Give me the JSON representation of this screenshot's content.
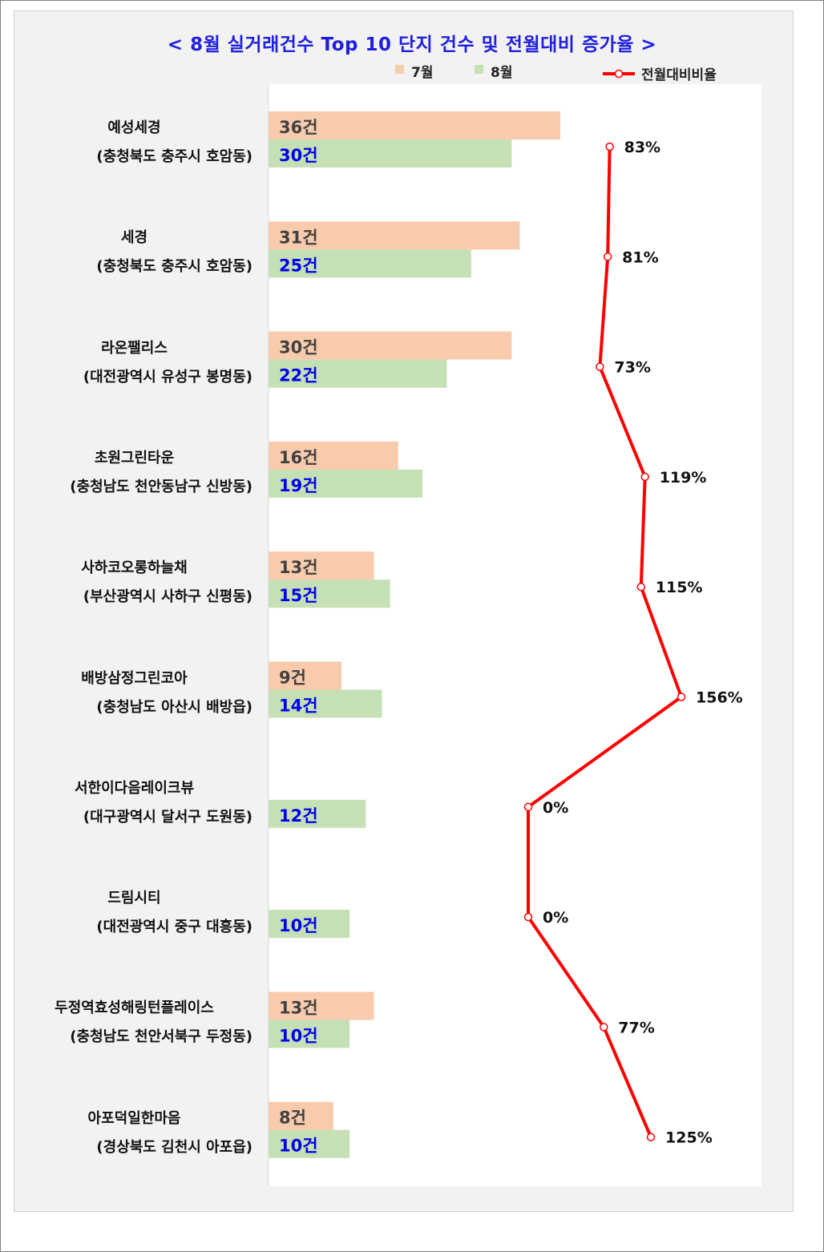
{
  "title": "< 8월 실거래건수 Top 10 단지 건수 및 전월대비 증가율 >",
  "legend": {
    "jul_label": "7월",
    "aug_label": "8월",
    "ratio_label": "전월대비비율"
  },
  "colors": {
    "jul": "#f8cbad",
    "aug": "#c5e0b4",
    "line": "#ff0000",
    "jul_text": "#404040",
    "aug_text": "#0000ee"
  },
  "chart_data": {
    "type": "bar",
    "orientation": "horizontal",
    "title": "< 8월 실거래건수 Top 10 단지 건수 및 전월대비 증가율 >",
    "categories": [
      {
        "name": "예성세경",
        "location": "(충청북도 충주시 호암동)"
      },
      {
        "name": "세경",
        "location": "(충청북도 충주시 호암동)"
      },
      {
        "name": "라온팰리스",
        "location": "(대전광역시 유성구 봉명동)"
      },
      {
        "name": "초원그린타운",
        "location": "(충청남도 천안동남구 신방동)"
      },
      {
        "name": "사하코오롱하늘채",
        "location": "(부산광역시 사하구 신평동)"
      },
      {
        "name": "배방삼정그린코아",
        "location": "(충청남도 아산시 배방읍)"
      },
      {
        "name": "서한이다음레이크뷰",
        "location": "(대구광역시 달서구 도원동)"
      },
      {
        "name": "드림시티",
        "location": "(대전광역시 중구 대흥동)"
      },
      {
        "name": "두정역효성해링턴플레이스",
        "location": "(충청남도 천안서북구 두정동)"
      },
      {
        "name": "아포덕일한마음",
        "location": "(경상북도 김천시 아포읍)"
      }
    ],
    "series": [
      {
        "name": "7월",
        "values": [
          36,
          31,
          30,
          16,
          13,
          9,
          null,
          null,
          13,
          8
        ],
        "labels": [
          "36건",
          "31건",
          "30건",
          "16건",
          "13건",
          "9건",
          "",
          "",
          "13건",
          "8건"
        ]
      },
      {
        "name": "8월",
        "values": [
          30,
          25,
          22,
          19,
          15,
          14,
          12,
          10,
          10,
          10
        ],
        "labels": [
          "30건",
          "25건",
          "22건",
          "19건",
          "15건",
          "14건",
          "12건",
          "10건",
          "10건",
          "10건"
        ]
      }
    ],
    "ratio_series": {
      "name": "전월대비비율",
      "type": "line",
      "values": [
        83,
        81,
        73,
        119,
        115,
        156,
        0,
        0,
        77,
        125
      ],
      "labels": [
        "83%",
        "81%",
        "73%",
        "119%",
        "115%",
        "156%",
        "0%",
        "0%",
        "77%",
        "125%"
      ],
      "xlim": [
        -100,
        200
      ]
    },
    "xlim": [
      0,
      36
    ],
    "grid": false,
    "legend_position": "top"
  }
}
